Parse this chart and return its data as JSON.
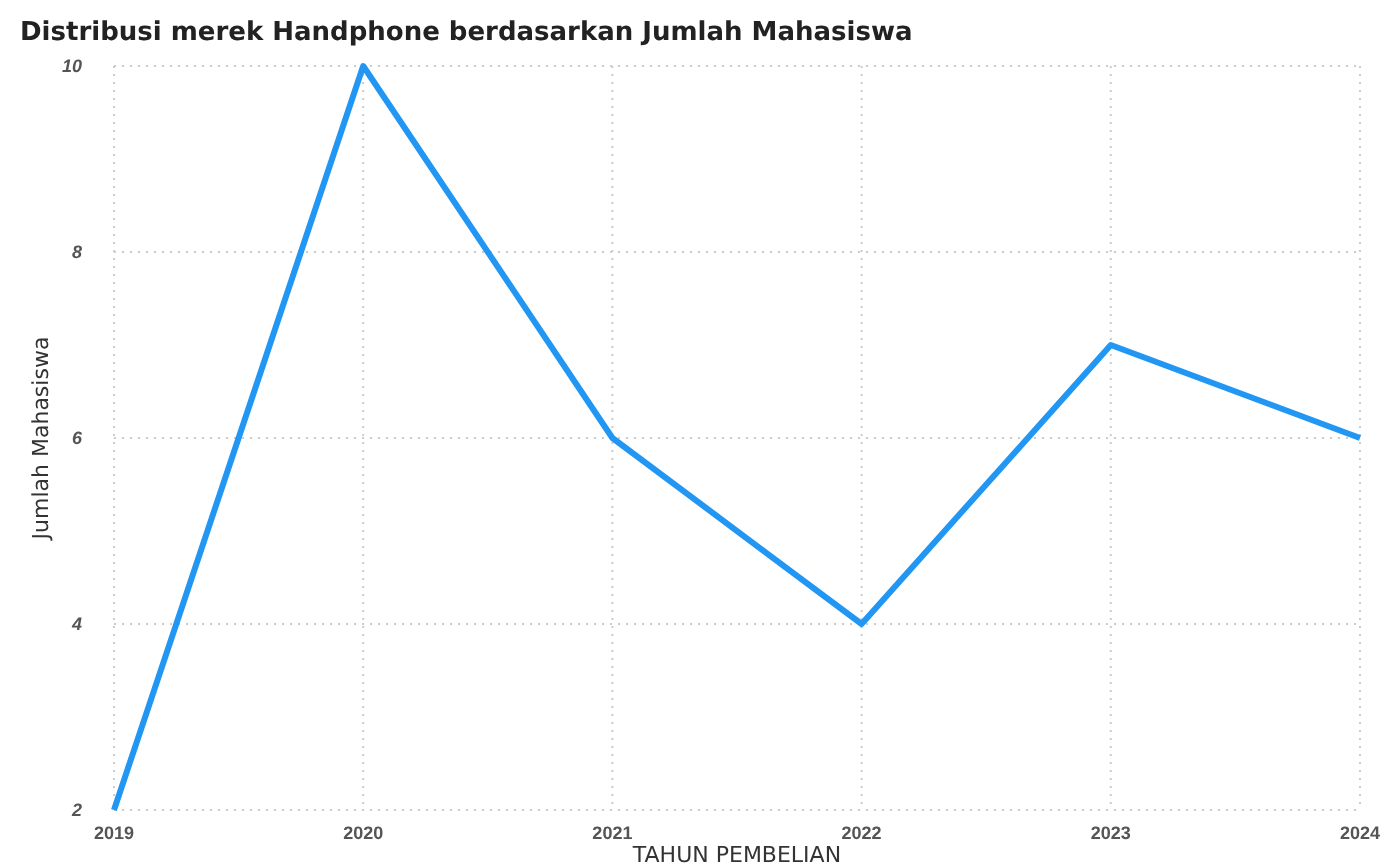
{
  "chart_data": {
    "type": "line",
    "title": "Distribusi merek Handphone berdasarkan Jumlah Mahasiswa",
    "xlabel": "TAHUN PEMBELIAN",
    "ylabel": "Jumlah Mahasiswa",
    "x": [
      2019,
      2020,
      2021,
      2022,
      2023,
      2024
    ],
    "series": [
      {
        "color": "#2196f3",
        "values": [
          2,
          10,
          6,
          4,
          7,
          6
        ]
      }
    ],
    "xlim": [
      2019,
      2024
    ],
    "xticks": [
      2019,
      2020,
      2021,
      2022,
      2023,
      2024
    ],
    "ylim": [
      2,
      10
    ],
    "yticks": [
      2,
      4,
      6,
      8,
      10
    ],
    "grid": true,
    "marker": "none",
    "line_style": "solid"
  }
}
